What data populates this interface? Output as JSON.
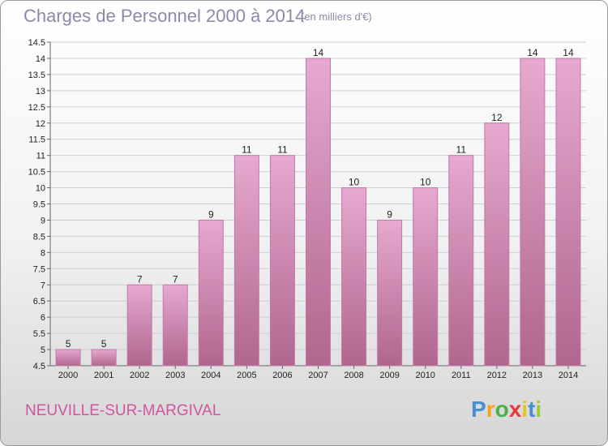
{
  "header": {
    "title": "Charges de Personnel 2000 à 2014",
    "unit": "(en milliers d'€)"
  },
  "footer": {
    "commune": "NEUVILLE-SUR-MARGIVAL",
    "logo_letters": [
      "P",
      "r",
      "o",
      "x",
      "i",
      "t",
      "i"
    ],
    "logo_colors": [
      "#4a8fd4",
      "#f2a41c",
      "#4ab04a",
      "#e03c3c",
      "#e8c51c",
      "#4a8fd4",
      "#9acd32"
    ]
  },
  "colors": {
    "bar_light": "#e6a9cf",
    "bar_dark": "#b0668f",
    "bar_edge": "#c07aa2",
    "title": "#8a8aa8",
    "commune": "#d0569f"
  },
  "chart_data": {
    "type": "bar",
    "categories": [
      "2000",
      "2001",
      "2002",
      "2003",
      "2004",
      "2005",
      "2006",
      "2007",
      "2008",
      "2009",
      "2010",
      "2011",
      "2012",
      "2013",
      "2014"
    ],
    "values": [
      5,
      5,
      7,
      7,
      9,
      11,
      11,
      14,
      10,
      9,
      10,
      11,
      12,
      14,
      14
    ],
    "value_labels": [
      "5",
      "5",
      "7",
      "7",
      "9",
      "11",
      "11",
      "14",
      "10",
      "9",
      "10",
      "11",
      "12",
      "14",
      "14"
    ],
    "yticks": [
      "4.5",
      "5",
      "5.5",
      "6",
      "6.5",
      "7",
      "7.5",
      "8",
      "8.5",
      "9",
      "9.5",
      "10",
      "10.5",
      "11",
      "11.5",
      "12",
      "12.5",
      "13",
      "13.5",
      "14",
      "14.5"
    ],
    "ylim": [
      4.5,
      14.5
    ],
    "grid": true,
    "title": "Charges de Personnel 2000 à 2014",
    "xlabel": "",
    "ylabel": ""
  }
}
